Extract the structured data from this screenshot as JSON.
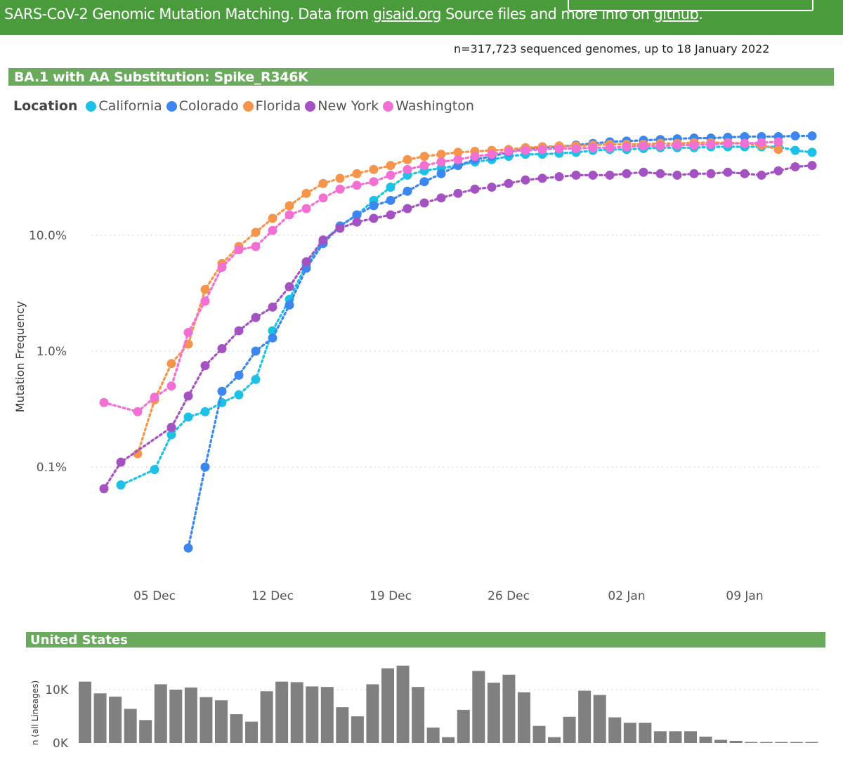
{
  "banner": {
    "prefix": "SARS-CoV-2 Genomic Mutation Matching. Data from ",
    "link1": "gisaid.org",
    "middle": " Source files and more info on ",
    "link2": "github",
    "suffix": "."
  },
  "subtitle": "n=317,723 sequenced genomes, up to 18 January 2022",
  "main_title": "BA.1 with AA Substitution: Spike_R346K",
  "legend": {
    "title": "Location",
    "items": [
      {
        "label": "California",
        "color": "#1ec1e6"
      },
      {
        "label": "Colorado",
        "color": "#3c86f0"
      },
      {
        "label": "Florida",
        "color": "#f5954b"
      },
      {
        "label": "New York",
        "color": "#a452c2"
      },
      {
        "label": "Washington",
        "color": "#f26fd4"
      }
    ]
  },
  "us_title": "United States",
  "chart_data": [
    {
      "type": "line",
      "title": "BA.1 with AA Substitution: Spike_R346K",
      "xlabel": "",
      "ylabel": "Mutation Frequency",
      "yscale": "log",
      "ylim": [
        0.008,
        90
      ],
      "x_axis": "day (0 = 05 Dec)",
      "xlim": [
        -3,
        39.5
      ],
      "x_ticks": [
        {
          "day": 0,
          "label": "05 Dec"
        },
        {
          "day": 7,
          "label": "12 Dec"
        },
        {
          "day": 14,
          "label": "19 Dec"
        },
        {
          "day": 21,
          "label": "26 Dec"
        },
        {
          "day": 28,
          "label": "02 Jan"
        },
        {
          "day": 35,
          "label": "09 Jan"
        }
      ],
      "y_ticks": [
        {
          "value": 0.1,
          "label": "0.1%"
        },
        {
          "value": 1,
          "label": "1.0%"
        },
        {
          "value": 10,
          "label": "10.0%"
        }
      ],
      "series": [
        {
          "name": "California",
          "color": "#1ec1e6",
          "x": [
            -2,
            0,
            1,
            2,
            3,
            4,
            5,
            6,
            7,
            8,
            9,
            10,
            11,
            12,
            13,
            14,
            15,
            16,
            17,
            18,
            19,
            20,
            21,
            22,
            23,
            24,
            25,
            26,
            27,
            28,
            29,
            30,
            31,
            32,
            33,
            34,
            35,
            36,
            37,
            38,
            39
          ],
          "values": [
            0.07,
            0.095,
            0.19,
            0.27,
            0.3,
            0.36,
            0.42,
            0.57,
            1.5,
            2.8,
            5.6,
            8.8,
            12,
            15,
            20,
            26,
            33,
            36,
            38,
            40,
            43,
            45,
            48,
            50,
            50,
            51,
            52,
            54,
            55,
            55,
            56,
            57,
            57,
            57,
            58,
            58,
            58,
            58,
            58,
            54,
            52
          ]
        },
        {
          "name": "Colorado",
          "color": "#3c86f0",
          "x": [
            2,
            3,
            4,
            5,
            6,
            7,
            8,
            9,
            10,
            11,
            12,
            13,
            14,
            15,
            16,
            17,
            18,
            19,
            20,
            21,
            22,
            23,
            24,
            25,
            26,
            27,
            28,
            29,
            30,
            31,
            32,
            33,
            34,
            35,
            36,
            37,
            38,
            39
          ],
          "values": [
            0.02,
            0.1,
            0.45,
            0.62,
            1.0,
            1.3,
            2.5,
            5.2,
            8.5,
            12,
            15,
            18,
            20,
            24,
            29,
            34,
            40,
            45,
            48,
            52,
            56,
            57,
            58,
            60,
            62,
            64,
            65,
            66,
            67,
            68,
            69,
            69,
            70,
            71,
            71,
            71,
            72,
            72
          ]
        },
        {
          "name": "Florida",
          "color": "#f5954b",
          "x": [
            -1,
            0,
            1,
            2,
            3,
            4,
            5,
            6,
            7,
            8,
            9,
            10,
            11,
            12,
            13,
            14,
            15,
            16,
            17,
            18,
            19,
            20,
            21,
            22,
            23,
            24,
            25,
            26,
            27,
            28,
            29,
            30,
            31,
            32,
            33,
            34,
            35,
            36,
            37
          ],
          "values": [
            0.13,
            0.38,
            0.78,
            1.15,
            3.4,
            5.7,
            8.0,
            10.6,
            14,
            18,
            23,
            28,
            31,
            34,
            37,
            40,
            45,
            48,
            50,
            52,
            53,
            54,
            55,
            57,
            58,
            59,
            59,
            60,
            61,
            61,
            61,
            62,
            62,
            63,
            63,
            63,
            62,
            60,
            55
          ]
        },
        {
          "name": "New York",
          "color": "#a452c2",
          "x": [
            -3,
            -2,
            1,
            2,
            3,
            4,
            5,
            6,
            7,
            8,
            9,
            10,
            11,
            12,
            13,
            14,
            15,
            16,
            17,
            18,
            19,
            20,
            21,
            22,
            23,
            24,
            25,
            26,
            27,
            28,
            29,
            30,
            31,
            32,
            33,
            34,
            35,
            36,
            37,
            38,
            39
          ],
          "values": [
            0.065,
            0.11,
            0.22,
            0.41,
            0.75,
            1.05,
            1.5,
            1.95,
            2.4,
            3.6,
            5.9,
            9.1,
            11.5,
            13,
            14,
            15,
            17,
            19,
            21,
            23,
            25,
            26,
            28,
            30,
            31,
            32,
            33,
            33,
            33,
            34,
            35,
            34,
            33,
            34,
            34,
            35,
            34,
            33,
            36,
            39,
            40
          ]
        },
        {
          "name": "Washington",
          "color": "#f26fd4",
          "x": [
            -3,
            -1,
            0,
            1,
            2,
            3,
            4,
            5,
            6,
            7,
            8,
            9,
            10,
            11,
            12,
            13,
            14,
            15,
            16,
            17,
            18,
            19,
            20,
            21,
            22,
            23,
            24,
            25,
            26,
            27,
            28,
            29,
            30,
            31,
            32,
            33,
            34,
            35,
            36,
            37
          ],
          "values": [
            0.36,
            0.3,
            0.4,
            0.5,
            1.45,
            2.7,
            5.3,
            7.5,
            8,
            11,
            15,
            17,
            21,
            25,
            27,
            29,
            33,
            37,
            40,
            43,
            45,
            48,
            50,
            53,
            54,
            55,
            56,
            56,
            57,
            57,
            58,
            59,
            59,
            60,
            60,
            61,
            62,
            62,
            63,
            64
          ]
        }
      ]
    },
    {
      "type": "bar",
      "title": "United States",
      "xlabel": "",
      "ylabel": "n (all Lineages)",
      "ylim": [
        0,
        16000
      ],
      "y_ticks": [
        {
          "value": 0,
          "label": "0K"
        },
        {
          "value": 10000,
          "label": "10K"
        }
      ],
      "values": [
        11500,
        9300,
        8700,
        6400,
        4300,
        11000,
        10000,
        10400,
        8600,
        8000,
        5400,
        4000,
        9700,
        11500,
        11400,
        10600,
        10500,
        6700,
        5000,
        11000,
        14000,
        14500,
        10500,
        2900,
        1100,
        6200,
        13500,
        11300,
        12800,
        9500,
        3200,
        1100,
        4900,
        9800,
        9000,
        4800,
        3800,
        3800,
        2200,
        2200,
        2200,
        1200,
        600,
        400,
        200,
        200,
        200,
        200,
        200
      ]
    }
  ]
}
